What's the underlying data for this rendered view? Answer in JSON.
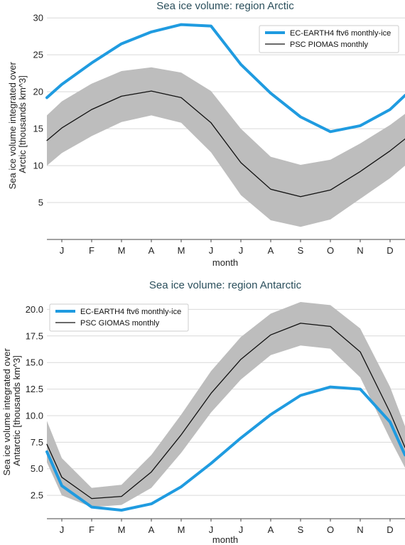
{
  "colors": {
    "model_line": "#1f9be0",
    "obs_line": "#111111",
    "band": "#bdbdbd",
    "title": "#2b4f5c"
  },
  "chart_data": [
    {
      "type": "line",
      "title": "Sea ice volume: region Arctic",
      "xlabel": "month",
      "ylabel_lines": [
        "Sea ice volume integrated over",
        "Arctic [thousands km^3]"
      ],
      "categories": [
        "J",
        "F",
        "M",
        "A",
        "M",
        "J",
        "J",
        "A",
        "S",
        "O",
        "N",
        "D"
      ],
      "x_range": [
        0.5,
        12.5
      ],
      "ylim": [
        0,
        30.5
      ],
      "yticks": [
        5,
        10,
        15,
        20,
        25,
        30
      ],
      "ytick_labels": [
        "5",
        "10",
        "15",
        "20",
        "25",
        "30"
      ],
      "grid": "horizontal",
      "legend_position": "top-right",
      "band": {
        "x": [
          0.5,
          1,
          2,
          3,
          4,
          5,
          6,
          7,
          8,
          9,
          10,
          11,
          12,
          12.5
        ],
        "upper": [
          16.8,
          18.7,
          21.1,
          22.8,
          23.3,
          22.6,
          20.1,
          15.0,
          11.2,
          10.1,
          10.8,
          13.0,
          15.5,
          17.0
        ],
        "lower": [
          10.0,
          11.7,
          14.0,
          15.9,
          16.8,
          15.8,
          11.8,
          6.0,
          2.6,
          1.7,
          2.7,
          5.5,
          8.3,
          10.0
        ]
      },
      "series": [
        {
          "name": "EC-EARTH4 ftv6 monthly-ice",
          "x": [
            0.5,
            1,
            2,
            3,
            4,
            5,
            6,
            7,
            8,
            9,
            10,
            11,
            12,
            12.5
          ],
          "values": [
            19.2,
            21.0,
            23.9,
            26.5,
            28.1,
            29.1,
            28.9,
            23.7,
            19.8,
            16.6,
            14.6,
            15.4,
            17.6,
            19.5
          ]
        },
        {
          "name": "PSC PIOMAS monthly",
          "x": [
            0.5,
            1,
            2,
            3,
            4,
            5,
            6,
            7,
            8,
            9,
            10,
            11,
            12,
            12.5
          ],
          "values": [
            13.4,
            15.1,
            17.6,
            19.4,
            20.1,
            19.2,
            15.8,
            10.4,
            6.8,
            5.8,
            6.7,
            9.2,
            12.0,
            13.6
          ]
        }
      ]
    },
    {
      "type": "line",
      "title": "Sea ice volume: region Antarctic",
      "xlabel": "month",
      "ylabel_lines": [
        "Sea ice volume integrated over",
        "Antarctic [thousands km^3]"
      ],
      "categories": [
        "J",
        "F",
        "M",
        "A",
        "M",
        "J",
        "J",
        "A",
        "S",
        "O",
        "N",
        "D"
      ],
      "x_range": [
        0.5,
        12.5
      ],
      "ylim": [
        0.3,
        21.5
      ],
      "yticks": [
        2.5,
        5.0,
        7.5,
        10.0,
        12.5,
        15.0,
        17.5,
        20.0
      ],
      "ytick_labels": [
        "2.5",
        "5.0",
        "7.5",
        "10.0",
        "12.5",
        "15.0",
        "17.5",
        "20.0"
      ],
      "grid": "horizontal",
      "legend_position": "top-left",
      "band": {
        "x": [
          0.5,
          1,
          2,
          3,
          4,
          5,
          6,
          7,
          8,
          9,
          10,
          11,
          12,
          12.5
        ],
        "upper": [
          9.5,
          6.0,
          3.2,
          3.5,
          6.3,
          10.1,
          14.2,
          17.4,
          19.6,
          20.7,
          20.4,
          18.2,
          12.7,
          9.0
        ],
        "lower": [
          5.6,
          2.5,
          1.4,
          1.6,
          3.2,
          6.5,
          10.3,
          13.4,
          15.7,
          16.6,
          16.3,
          13.6,
          7.8,
          5.1
        ]
      },
      "series": [
        {
          "name": "EC-EARTH4 ftv6 monthly-ice",
          "x": [
            0.5,
            1,
            2,
            3,
            4,
            5,
            6,
            7,
            8,
            9,
            10,
            11,
            12,
            12.5
          ],
          "values": [
            6.6,
            3.4,
            1.4,
            1.1,
            1.7,
            3.3,
            5.5,
            7.9,
            10.1,
            11.9,
            12.7,
            12.5,
            9.4,
            6.3
          ]
        },
        {
          "name": "PSC GIOMAS monthly",
          "x": [
            0.5,
            1,
            2,
            3,
            4,
            5,
            6,
            7,
            8,
            9,
            10,
            11,
            12,
            12.5
          ],
          "values": [
            7.3,
            4.2,
            2.2,
            2.4,
            4.7,
            8.2,
            12.1,
            15.3,
            17.6,
            18.7,
            18.4,
            16.0,
            10.3,
            7.0
          ]
        }
      ]
    }
  ]
}
